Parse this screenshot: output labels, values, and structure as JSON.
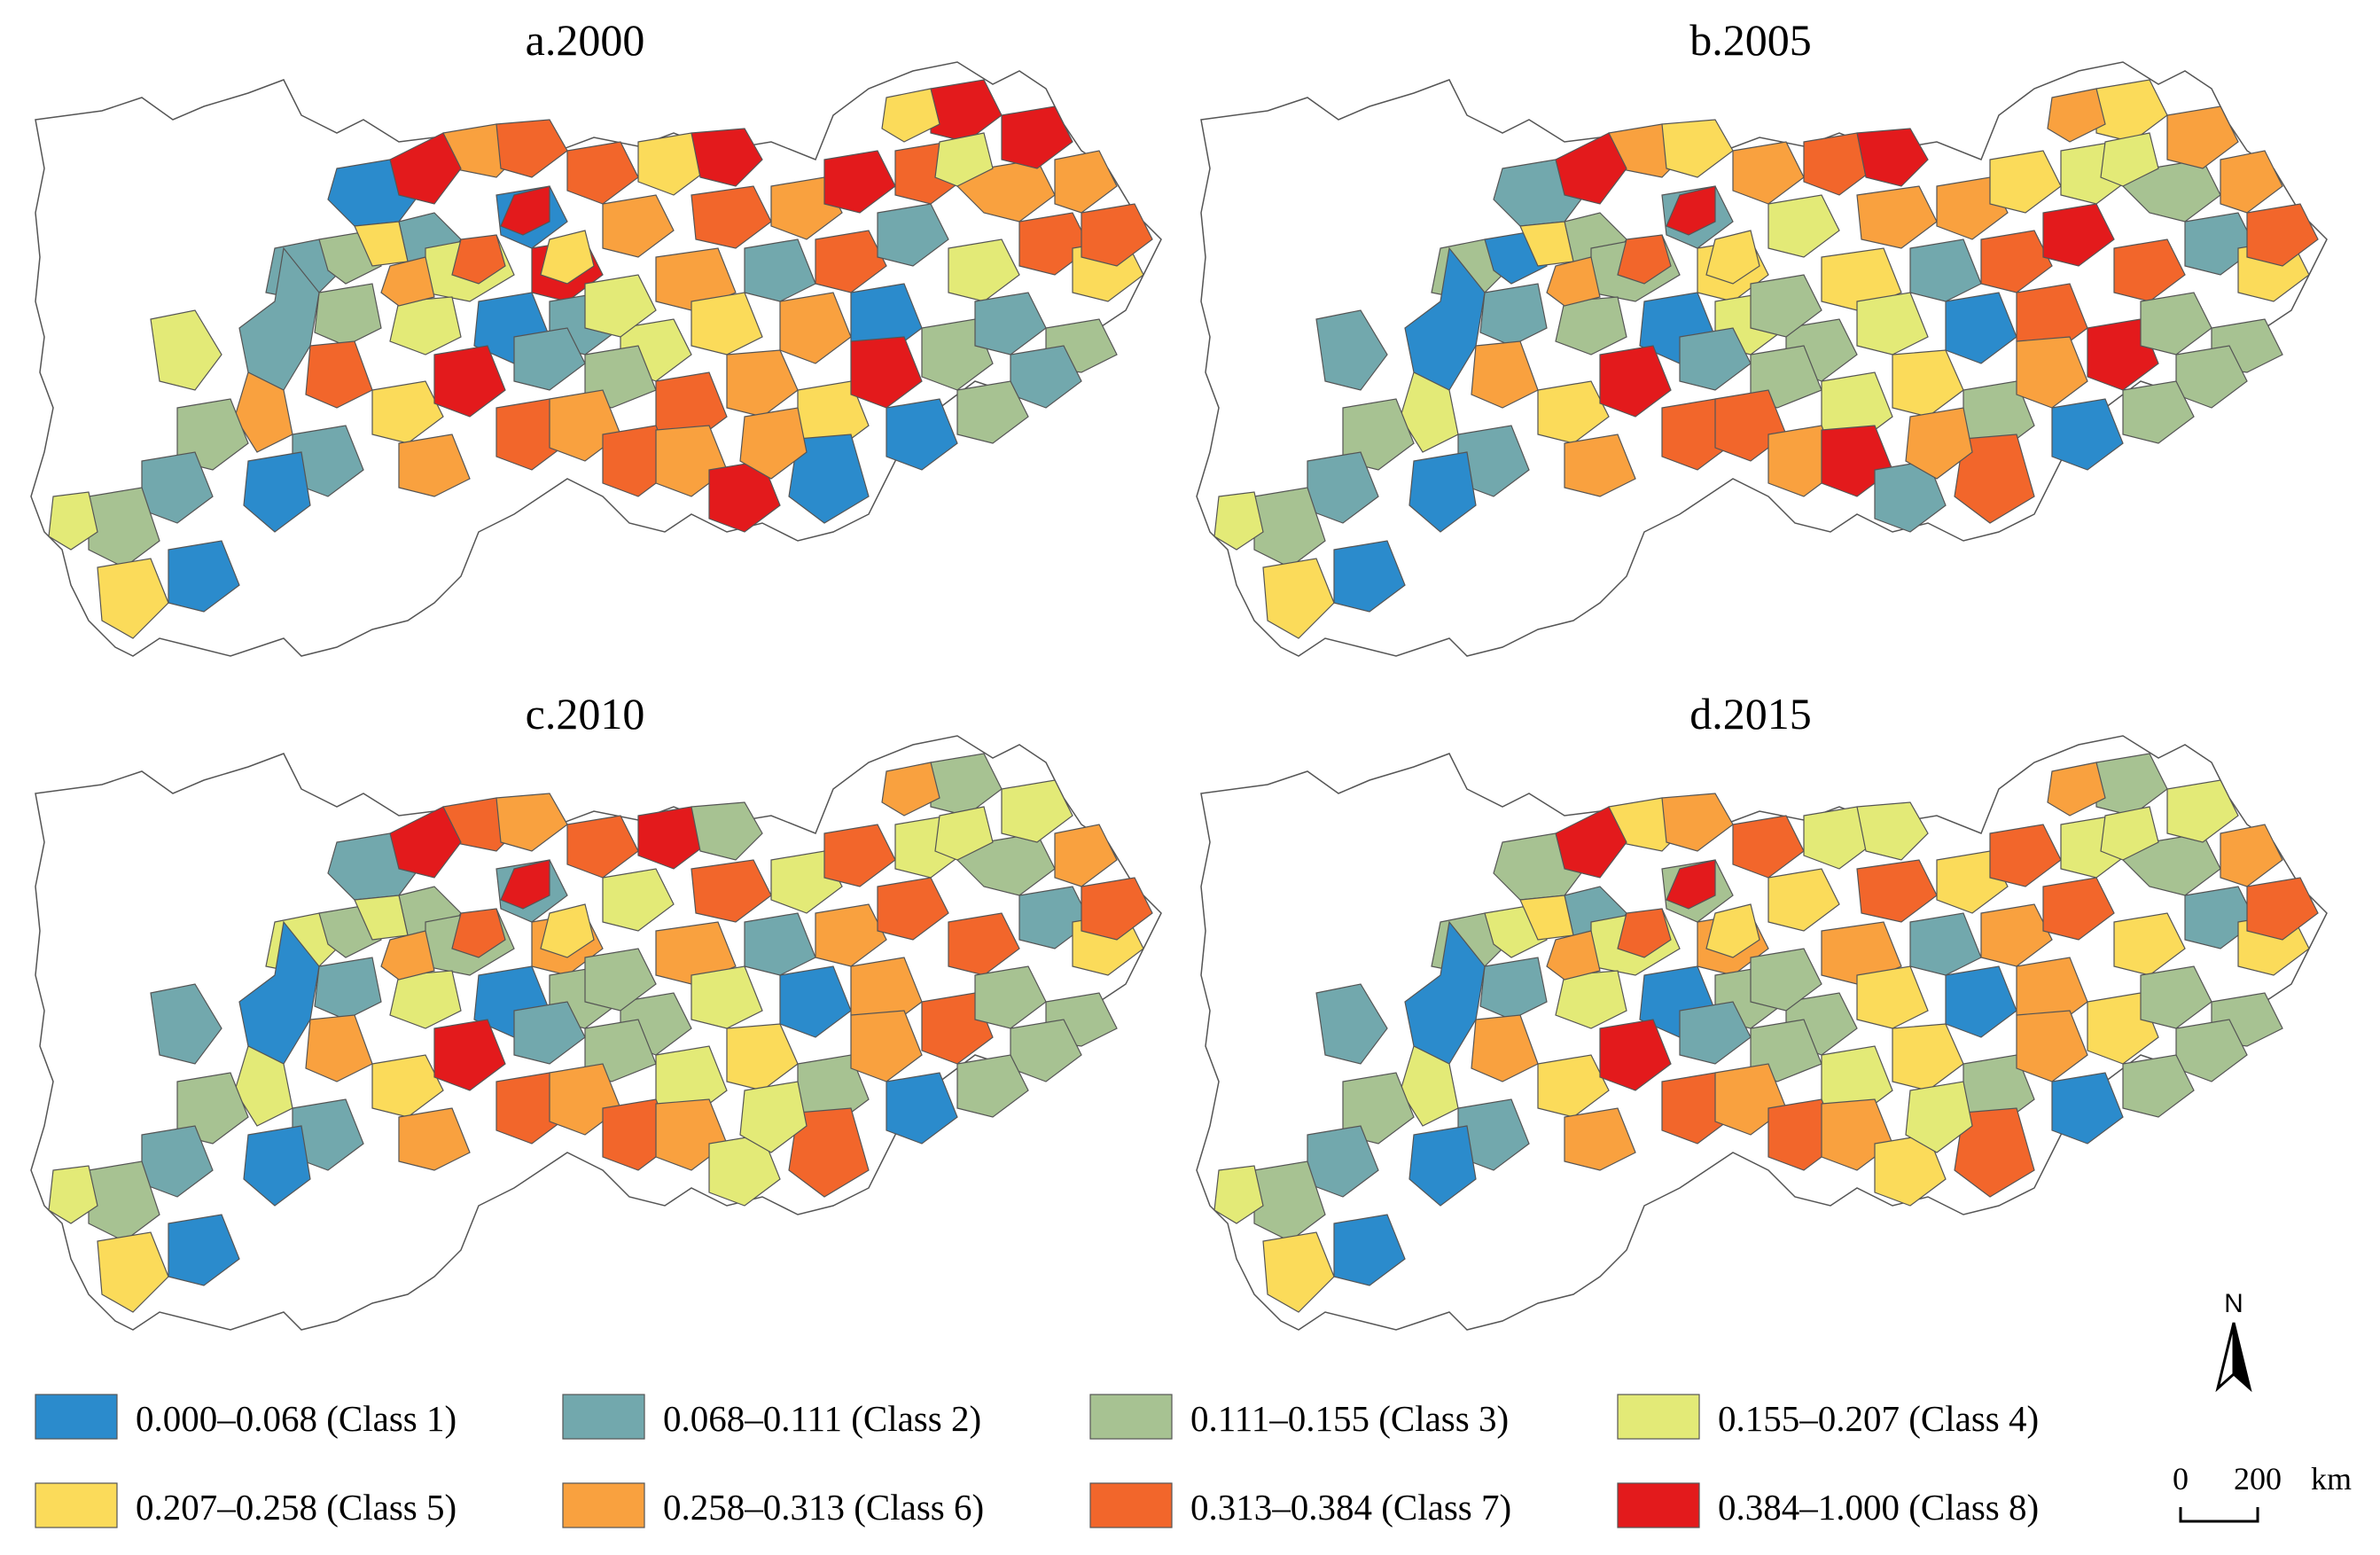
{
  "panels": [
    {
      "id": "a",
      "title": "a.2000",
      "classes": [
        1,
        2,
        6,
        7,
        8,
        2,
        3,
        5,
        4,
        1,
        7,
        8,
        6,
        5,
        1,
        2,
        4,
        3,
        6,
        7,
        8,
        4,
        2,
        6,
        7,
        8,
        3,
        5,
        6,
        1,
        2,
        7,
        8,
        5,
        4,
        6,
        7,
        8,
        3,
        2,
        6,
        5,
        7,
        8,
        1,
        2,
        4,
        6,
        7,
        3,
        5,
        2,
        6,
        8,
        7,
        1,
        2,
        3,
        4,
        5,
        6,
        7,
        6,
        8,
        1,
        2,
        3,
        5,
        6,
        7,
        4,
        2,
        1,
        3,
        6,
        5,
        7,
        8,
        4,
        6
      ]
    },
    {
      "id": "b",
      "title": "b.2005",
      "classes": [
        2,
        3,
        6,
        5,
        8,
        3,
        1,
        5,
        3,
        2,
        6,
        5,
        4,
        7,
        1,
        4,
        3,
        2,
        5,
        6,
        8,
        3,
        2,
        6,
        7,
        5,
        3,
        4,
        1,
        7,
        8,
        4,
        5,
        6,
        7,
        3,
        2,
        6,
        8,
        3,
        5,
        3,
        4,
        6,
        7,
        1,
        2,
        4,
        6,
        3,
        5,
        2,
        6,
        8,
        7,
        1,
        2,
        3,
        4,
        5,
        7,
        6,
        8,
        2,
        1,
        2,
        3,
        5,
        6,
        7,
        4,
        3,
        1,
        3,
        6,
        5,
        7,
        8,
        3,
        6
      ]
    },
    {
      "id": "c",
      "title": "c.2010",
      "classes": [
        2,
        3,
        7,
        6,
        8,
        4,
        3,
        4,
        3,
        2,
        7,
        6,
        4,
        8,
        1,
        3,
        4,
        2,
        6,
        7,
        3,
        3,
        2,
        4,
        6,
        7,
        3,
        4,
        1,
        6,
        7,
        4,
        3,
        6,
        7,
        3,
        2,
        4,
        7,
        3,
        5,
        3,
        4,
        6,
        7,
        1,
        2,
        4,
        6,
        3,
        5,
        2,
        6,
        8,
        7,
        1,
        2,
        3,
        4,
        5,
        6,
        7,
        6,
        4,
        1,
        2,
        3,
        5,
        6,
        7,
        4,
        3,
        1,
        3,
        4,
        5,
        7,
        8,
        3,
        6
      ]
    },
    {
      "id": "d",
      "title": "d.2015",
      "classes": [
        3,
        2,
        5,
        6,
        8,
        3,
        4,
        5,
        4,
        3,
        7,
        6,
        5,
        4,
        1,
        3,
        4,
        2,
        6,
        7,
        4,
        3,
        2,
        5,
        6,
        7,
        3,
        5,
        1,
        6,
        7,
        4,
        3,
        6,
        5,
        3,
        2,
        4,
        5,
        3,
        5,
        3,
        4,
        6,
        7,
        1,
        2,
        4,
        6,
        3,
        5,
        2,
        6,
        8,
        7,
        1,
        2,
        3,
        4,
        5,
        6,
        7,
        6,
        5,
        1,
        2,
        3,
        5,
        6,
        7,
        4,
        3,
        1,
        3,
        4,
        5,
        7,
        8,
        3,
        6
      ]
    }
  ],
  "legend": [
    {
      "label": "0.000–0.068 (Class 1)",
      "color": "#2b8bcc"
    },
    {
      "label": "0.068–0.111 (Class 2)",
      "color": "#72a8ad"
    },
    {
      "label": "0.111–0.155 (Class 3)",
      "color": "#a7c292"
    },
    {
      "label": "0.155–0.207 (Class 4)",
      "color": "#e3ea77"
    },
    {
      "label": "0.207–0.258 (Class 5)",
      "color": "#fbdb5a"
    },
    {
      "label": "0.258–0.313 (Class 6)",
      "color": "#f9a13f"
    },
    {
      "label": "0.313–0.384 (Class 7)",
      "color": "#f2662b"
    },
    {
      "label": "0.384–1.000 (Class 8)",
      "color": "#e31a1c"
    }
  ],
  "north_arrow": {
    "label": "N"
  },
  "scale_bar": {
    "zero": "0",
    "distance": "200",
    "unit": "km"
  }
}
